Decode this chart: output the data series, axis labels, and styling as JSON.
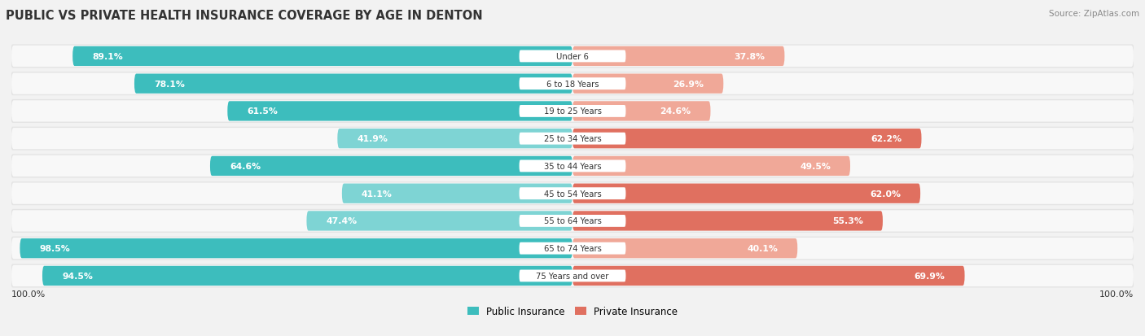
{
  "title": "PUBLIC VS PRIVATE HEALTH INSURANCE COVERAGE BY AGE IN DENTON",
  "source": "Source: ZipAtlas.com",
  "categories": [
    "Under 6",
    "6 to 18 Years",
    "19 to 25 Years",
    "25 to 34 Years",
    "35 to 44 Years",
    "45 to 54 Years",
    "55 to 64 Years",
    "65 to 74 Years",
    "75 Years and over"
  ],
  "public_values": [
    89.1,
    78.1,
    61.5,
    41.9,
    64.6,
    41.1,
    47.4,
    98.5,
    94.5
  ],
  "private_values": [
    37.8,
    26.9,
    24.6,
    62.2,
    49.5,
    62.0,
    55.3,
    40.1,
    69.9
  ],
  "public_color_high": "#3dbdbd",
  "public_color_low": "#7ed4d4",
  "private_color_high": "#e07060",
  "private_color_low": "#f0a898",
  "bg_color": "#f2f2f2",
  "capsule_bg": "#e4e4e4",
  "capsule_inner": "#f8f8f8",
  "title_color": "#333333",
  "label_color": "#333333",
  "value_inside_color": "#ffffff",
  "value_outside_color": "#555555",
  "source_color": "#888888",
  "max_value": 100.0,
  "legend_public": "Public Insurance",
  "legend_private": "Private Insurance",
  "inside_threshold": 20
}
